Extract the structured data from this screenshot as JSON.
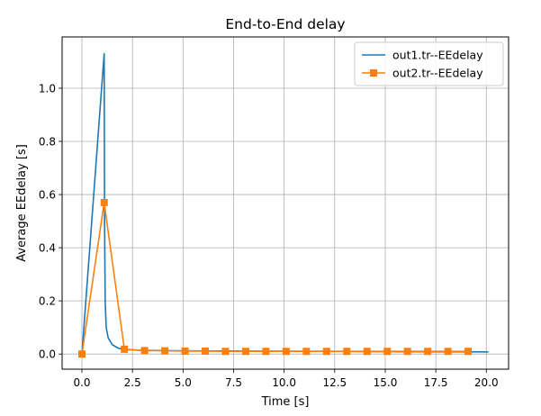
{
  "chart_data": {
    "type": "line",
    "title": "End-to-End delay",
    "xlabel": "Time [s]",
    "ylabel": "Average EEdelay [s]",
    "xlim": [
      -0.98,
      21.1
    ],
    "ylim": [
      -0.057,
      1.193
    ],
    "xticks": [
      0.0,
      2.5,
      5.0,
      7.5,
      10.0,
      12.5,
      15.0,
      17.5,
      20.0
    ],
    "xtick_labels": [
      "0.0",
      "2.5",
      "5.0",
      "7.5",
      "10.0",
      "12.5",
      "15.0",
      "17.5",
      "20.0"
    ],
    "yticks": [
      0.0,
      0.2,
      0.4,
      0.6,
      0.8,
      1.0
    ],
    "ytick_labels": [
      "0.0",
      "0.2",
      "0.4",
      "0.6",
      "0.8",
      "1.0"
    ],
    "grid": true,
    "legend_position": "top-right",
    "series": [
      {
        "name": "out1.tr--EEdelay",
        "color": "#1f77b4",
        "marker": "none",
        "x": [
          0.0,
          1.1,
          1.12,
          1.15,
          1.2,
          1.3,
          1.5,
          1.8,
          2.1,
          3.0,
          5.0,
          8.0,
          12.0,
          16.0,
          20.1
        ],
        "y": [
          0.0,
          1.13,
          0.5,
          0.2,
          0.1,
          0.06,
          0.035,
          0.022,
          0.017,
          0.014,
          0.012,
          0.011,
          0.01,
          0.009,
          0.008
        ]
      },
      {
        "name": "out2.tr--EEdelay",
        "color": "#ff7f0e",
        "marker": "square",
        "x": [
          0.0,
          1.1,
          2.1,
          3.1,
          4.1,
          5.1,
          6.1,
          7.1,
          8.1,
          9.1,
          10.1,
          11.1,
          12.1,
          13.1,
          14.1,
          15.1,
          16.1,
          17.1,
          18.1,
          19.1
        ],
        "y": [
          0.0,
          0.57,
          0.018,
          0.013,
          0.012,
          0.011,
          0.011,
          0.01,
          0.01,
          0.01,
          0.01,
          0.01,
          0.01,
          0.01,
          0.01,
          0.01,
          0.01,
          0.01,
          0.01,
          0.01
        ]
      }
    ]
  }
}
